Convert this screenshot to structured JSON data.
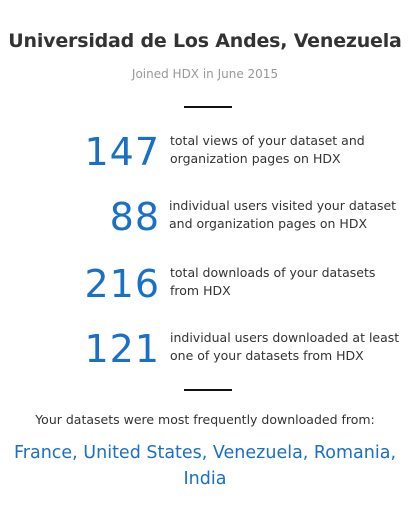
{
  "header": {
    "title": "Universidad de Los Andes, Venezuela",
    "joined": "Joined HDX in June 2015"
  },
  "stats": [
    {
      "value": "147",
      "desc_line1": "total views of your dataset and",
      "desc_line2": "organization pages on HDX"
    },
    {
      "value": "88",
      "desc_line1": "individual users visited your dataset",
      "desc_line2": "and organization pages on HDX"
    },
    {
      "value": "216",
      "desc_line1": "total downloads of your datasets",
      "desc_line2": "from HDX"
    },
    {
      "value": "121",
      "desc_line1": "individual users downloaded at least",
      "desc_line2": "one of your datasets from HDX"
    }
  ],
  "downloads": {
    "label": "Your datasets were most frequently downloaded from:",
    "countries_line1": "France, United States, Venezuela, Romania,",
    "countries_line2": "India"
  },
  "colors": {
    "accent": "#1a6fc6",
    "text": "#333333",
    "muted": "#999999"
  }
}
